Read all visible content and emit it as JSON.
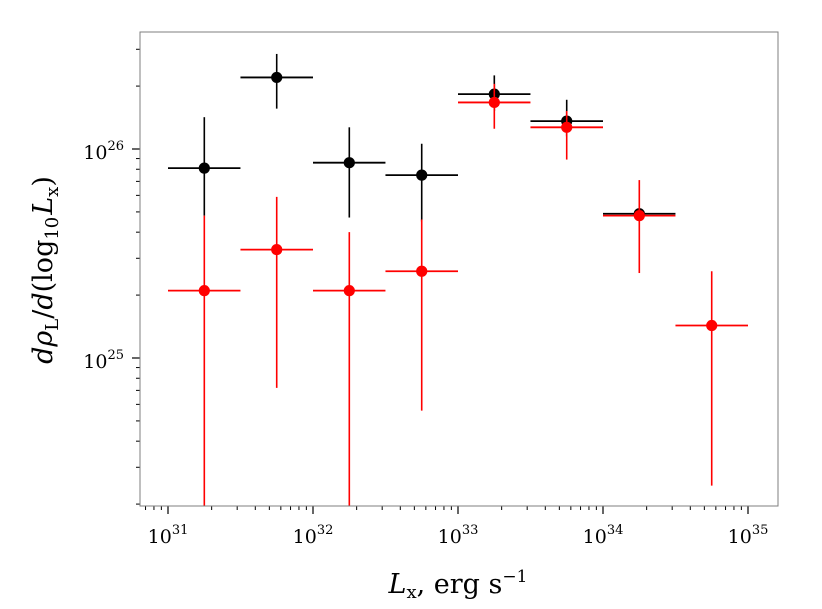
{
  "chart_data": {
    "type": "scatter",
    "title": "",
    "xscale": "log",
    "yscale": "log",
    "xlim": [
      6e+30,
      2e+35
    ],
    "ylim": [
      2e+24,
      3.6e+26
    ],
    "x_ticks": [
      {
        "base": "10",
        "exp": "31",
        "value": 1e+31
      },
      {
        "base": "10",
        "exp": "32",
        "value": 1e+32
      },
      {
        "base": "10",
        "exp": "33",
        "value": 1e+33
      },
      {
        "base": "10",
        "exp": "34",
        "value": 1e+34
      },
      {
        "base": "10",
        "exp": "35",
        "value": 1e+35
      }
    ],
    "y_ticks": [
      {
        "base": "10",
        "exp": "25",
        "value": 1e+25
      },
      {
        "base": "10",
        "exp": "26",
        "value": 1e+26
      }
    ],
    "xlabel": {
      "main": "L",
      "sub": "x",
      "rest": ", erg s",
      "sup": "−1"
    },
    "ylabel": {
      "d1": "d",
      "rho": "ρ",
      "rho_sub": "L",
      "slash": "/",
      "d2": "d",
      "open": "(log",
      "log_sub": "10",
      "L": "L",
      "L_sub": "x",
      "close": ")"
    },
    "series": [
      {
        "name": "black",
        "color": "#000000",
        "points": [
          {
            "x": 1.78e+31,
            "y": 8.1e+25,
            "xlo": 1e+31,
            "xhi": 3.16e+31,
            "ylo": 4.8e+25,
            "yhi": 1.42e+26
          },
          {
            "x": 5.62e+31,
            "y": 2.2e+26,
            "xlo": 3.16e+31,
            "xhi": 1e+32,
            "ylo": 1.56e+26,
            "yhi": 2.85e+26
          },
          {
            "x": 1.78e+32,
            "y": 8.6e+25,
            "xlo": 1e+32,
            "xhi": 3.16e+32,
            "ylo": 4.7e+25,
            "yhi": 1.27e+26
          },
          {
            "x": 5.62e+32,
            "y": 7.5e+25,
            "xlo": 3.16e+32,
            "xhi": 1e+33,
            "ylo": 4.5e+25,
            "yhi": 1.06e+26
          },
          {
            "x": 1.78e+33,
            "y": 1.83e+26,
            "xlo": 1e+33,
            "xhi": 3.16e+33,
            "ylo": 1.52e+26,
            "yhi": 2.25e+26
          },
          {
            "x": 5.62e+33,
            "y": 1.36e+26,
            "xlo": 3.16e+33,
            "xhi": 1e+34,
            "ylo": 1.15e+26,
            "yhi": 1.72e+26
          },
          {
            "x": 1.78e+34,
            "y": 4.9e+25,
            "xlo": 1e+34,
            "xhi": 3.16e+34,
            "ylo": 4.9e+25,
            "yhi": 4.9e+25
          }
        ]
      },
      {
        "name": "red",
        "color": "#ff0000",
        "points": [
          {
            "x": 1.78e+31,
            "y": 2.1e+25,
            "xlo": 1e+31,
            "xhi": 3.16e+31,
            "ylo": 1e+20,
            "yhi": 4.8e+25
          },
          {
            "x": 5.62e+31,
            "y": 3.3e+25,
            "xlo": 3.16e+31,
            "xhi": 1e+32,
            "ylo": 7.2e+24,
            "yhi": 5.9e+25
          },
          {
            "x": 1.78e+32,
            "y": 2.1e+25,
            "xlo": 1e+32,
            "xhi": 3.16e+32,
            "ylo": 1e+20,
            "yhi": 4e+25
          },
          {
            "x": 5.62e+32,
            "y": 2.6e+25,
            "xlo": 3.16e+32,
            "xhi": 1e+33,
            "ylo": 5.6e+24,
            "yhi": 4.6e+25
          },
          {
            "x": 1.78e+33,
            "y": 1.67e+26,
            "xlo": 1e+33,
            "xhi": 3.16e+33,
            "ylo": 1.25e+26,
            "yhi": 2.05e+26
          },
          {
            "x": 5.62e+33,
            "y": 1.27e+26,
            "xlo": 3.16e+33,
            "xhi": 1e+34,
            "ylo": 8.9e+25,
            "yhi": 1.52e+26
          },
          {
            "x": 1.78e+34,
            "y": 4.8e+25,
            "xlo": 1e+34,
            "xhi": 3.16e+34,
            "ylo": 2.55e+25,
            "yhi": 7.1e+25
          },
          {
            "x": 5.62e+34,
            "y": 1.43e+25,
            "xlo": 3.16e+34,
            "xhi": 1e+35,
            "ylo": 2.45e+24,
            "yhi": 2.6e+25
          }
        ]
      }
    ]
  }
}
